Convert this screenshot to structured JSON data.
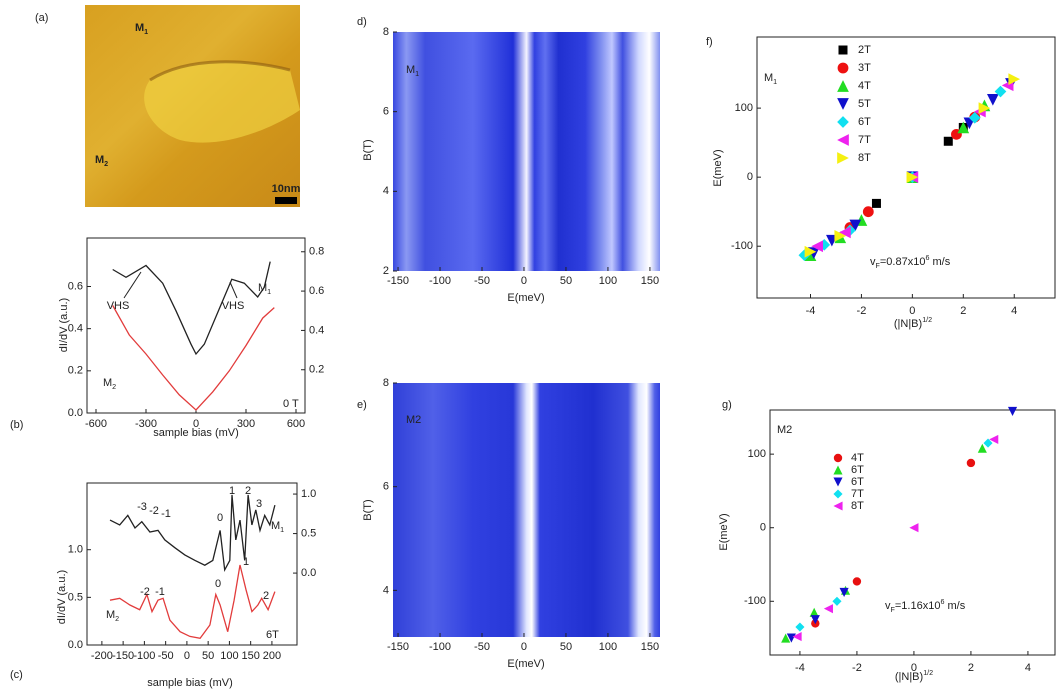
{
  "chart_data": [
    {
      "type": "image",
      "label": "(a)",
      "texts": [
        [
          {
            "text": "M"
          },
          {
            "sub": "1"
          }
        ],
        [
          {
            "text": "M"
          },
          {
            "sub": "2"
          }
        ]
      ],
      "text_colors": [
        "#111111",
        "#e8141e"
      ],
      "scale_bar": "10nm"
    },
    {
      "type": "line",
      "label": "(b)",
      "xlabel": "sample bias (mV)",
      "ylabel": "dI/dV (a.u.)",
      "xlim": [
        -654,
        654
      ],
      "xticks": [
        -600,
        -300,
        0,
        300,
        600
      ],
      "ylim": [
        0,
        0.83
      ],
      "yticks": [
        {
          "value": 0,
          "label": "0.0"
        },
        0.2,
        0.4,
        0.6
      ],
      "y2lim": [
        -0.02,
        0.87
      ],
      "y2ticks": [
        0.2,
        0.4,
        0.6,
        0.8
      ],
      "series": [
        {
          "name": [
            {
              "text": "M"
            },
            {
              "sub": "1"
            }
          ],
          "color": "#222222",
          "axis": "y2",
          "x": [
            -500,
            -420,
            -300,
            -200,
            -120,
            -30,
            0,
            50,
            140,
            215,
            290,
            370,
            410,
            445
          ],
          "values": [
            0.71,
            0.67,
            0.73,
            0.64,
            0.5,
            0.33,
            0.28,
            0.33,
            0.51,
            0.66,
            0.64,
            0.57,
            0.62,
            0.75
          ]
        },
        {
          "name": [
            {
              "text": "M"
            },
            {
              "sub": "2"
            }
          ],
          "color": "#e23c3c",
          "x": [
            -500,
            -400,
            -300,
            -200,
            -100,
            0,
            100,
            200,
            300,
            400,
            470
          ],
          "values": [
            0.51,
            0.37,
            0.28,
            0.18,
            0.086,
            0.014,
            0.1,
            0.2,
            0.32,
            0.45,
            0.5
          ]
        }
      ],
      "annotations": [
        "VHS",
        "VHS"
      ],
      "field": "0 T"
    },
    {
      "type": "line",
      "label": "(c)",
      "xlabel": "sample bias (mV)",
      "ylabel": "dI/dV (a.u.)",
      "xlim": [
        -235,
        259
      ],
      "xticks": [
        -200,
        -150,
        -100,
        -50,
        0,
        50,
        100,
        150,
        200
      ],
      "ylim": [
        0,
        1.7
      ],
      "yticks": [
        {
          "value": 0,
          "label": "0.0"
        },
        0.5,
        {
          "value": 1,
          "label": "1.0"
        }
      ],
      "y2lim": [
        -0.91,
        1.14
      ],
      "y2ticks": [
        {
          "value": 0,
          "label": "0.0"
        },
        0.5,
        {
          "value": 1,
          "label": "1.0"
        }
      ],
      "series": [
        {
          "name": [
            {
              "text": "M"
            },
            {
              "sub": "1"
            }
          ],
          "color": "#222222",
          "axis": "y2",
          "x": [
            -181,
            -158,
            -139,
            -122,
            -106,
            -87,
            -68,
            -52,
            -28,
            -5,
            19,
            42,
            61,
            78,
            89,
            101,
            106,
            115,
            125,
            136,
            144,
            153,
            162,
            172,
            183,
            195,
            207
          ],
          "values": [
            0.67,
            0.61,
            0.73,
            0.57,
            0.65,
            0.52,
            0.54,
            0.42,
            0.32,
            0.23,
            0.16,
            0.1,
            0.16,
            0.54,
            0.04,
            0.16,
            0.99,
            0.42,
            0.67,
            0.16,
            0.99,
            0.61,
            0.8,
            0.54,
            0.73,
            0.61,
            0.86
          ],
          "levels": [
            "-3",
            "-2",
            "-1",
            "0",
            "1",
            "2",
            "3"
          ]
        },
        {
          "name": [
            {
              "text": "M"
            },
            {
              "sub": "2"
            }
          ],
          "color": "#e23c3c",
          "x": [
            -181,
            -158,
            -134,
            -111,
            -94,
            -82,
            -68,
            -56,
            -40,
            -16,
            7,
            31,
            54,
            68,
            78,
            96,
            111,
            125,
            139,
            153,
            167,
            176,
            191,
            207
          ],
          "values": [
            0.47,
            0.49,
            0.42,
            0.37,
            0.53,
            0.35,
            0.47,
            0.49,
            0.26,
            0.14,
            0.09,
            0.07,
            0.21,
            0.53,
            0.42,
            0.14,
            0.47,
            0.84,
            0.58,
            0.35,
            0.42,
            0.49,
            0.37,
            0.56
          ],
          "levels": [
            "-2",
            "-1",
            "0",
            "1",
            "2"
          ]
        }
      ],
      "field": "6T"
    },
    {
      "type": "heatmap",
      "label": "d)",
      "title": [
        {
          "text": "M"
        },
        {
          "sub": "1"
        }
      ],
      "xlabel": "E(meV)",
      "ylabel": "B(T)",
      "xlim": [
        -156,
        162
      ],
      "xticks": [
        -150,
        -100,
        -50,
        0,
        50,
        100,
        150
      ],
      "ylim": [
        2,
        8
      ],
      "yticks": [
        2,
        4,
        6,
        8
      ]
    },
    {
      "type": "heatmap",
      "label": "e)",
      "title": [
        {
          "text": "M2"
        }
      ],
      "xlabel": "E(meV)",
      "ylabel": "B(T)",
      "xlim": [
        -156,
        162
      ],
      "xticks": [
        -150,
        -100,
        -50,
        0,
        50,
        100,
        150
      ],
      "ylim": [
        3.1,
        8
      ],
      "yticks": [
        4,
        6,
        8
      ]
    },
    {
      "type": "scatter",
      "label": "f)",
      "title": [
        {
          "text": "M"
        },
        {
          "sub": "1"
        }
      ],
      "xlabel": [
        {
          "text": "(|N|B)"
        },
        {
          "sup": "1/2"
        }
      ],
      "ylabel": "E(meV)",
      "xlim": [
        -6.1,
        5.6
      ],
      "xticks": [
        -4,
        -2,
        0,
        2,
        4
      ],
      "ylim": [
        -175,
        203
      ],
      "yticks": [
        -100,
        0,
        100
      ],
      "annotation": [
        {
          "text": "v"
        },
        {
          "sub": "F"
        },
        {
          "text": "=0.87x10"
        },
        {
          "sup": "6"
        },
        {
          "text": " m/s"
        }
      ],
      "series": [
        {
          "name": "2T",
          "color": "#000000",
          "marker": "square",
          "x": [
            -1.41,
            0,
            1.41,
            2.0
          ],
          "values": [
            -38,
            0,
            52,
            72
          ]
        },
        {
          "name": "3T",
          "color": "#ee1111",
          "marker": "circle",
          "x": [
            -2.45,
            -1.73,
            0,
            1.73,
            2.45
          ],
          "values": [
            -73,
            -50,
            0,
            62,
            87
          ]
        },
        {
          "name": "4T",
          "color": "#22dd22",
          "marker": "triangle-up",
          "x": [
            -4.0,
            -2.83,
            -2.0,
            0,
            2.0,
            2.83
          ],
          "values": [
            -113,
            -87,
            -62,
            0,
            72,
            104
          ]
        },
        {
          "name": "5T",
          "color": "#1010cc",
          "marker": "triangle-down",
          "x": [
            -3.87,
            -3.16,
            -2.24,
            0,
            2.24,
            3.16,
            3.87
          ],
          "values": [
            -110,
            -92,
            -70,
            0,
            78,
            112,
            135
          ]
        },
        {
          "name": "6T",
          "color": "#10e0f0",
          "marker": "diamond",
          "x": [
            -4.24,
            -3.46,
            -2.45,
            0,
            2.45,
            3.46
          ],
          "values": [
            -113,
            -98,
            -77,
            0,
            86,
            124
          ]
        },
        {
          "name": "7T",
          "color": "#ee22ee",
          "marker": "triangle-left",
          "x": [
            -3.74,
            -2.65,
            0,
            2.65,
            3.74
          ],
          "values": [
            -100,
            -80,
            0,
            95,
            133
          ]
        },
        {
          "name": "8T",
          "color": "#f5f010",
          "marker": "triangle-right",
          "x": [
            -4.0,
            -2.83,
            0,
            2.83,
            4.0
          ],
          "values": [
            -108,
            -85,
            0,
            100,
            142
          ]
        }
      ]
    },
    {
      "type": "scatter",
      "label": "g)",
      "title": [
        {
          "text": "M2"
        }
      ],
      "xlabel": [
        {
          "text": "(|N|B)"
        },
        {
          "sup": "1/2"
        }
      ],
      "ylabel": "E(meV)",
      "xlim": [
        -5.05,
        4.95
      ],
      "xticks": [
        -4,
        -2,
        0,
        2,
        4
      ],
      "ylim": [
        -173,
        160
      ],
      "yticks": [
        -100,
        0,
        100
      ],
      "annotation": [
        {
          "text": "v"
        },
        {
          "sub": "F"
        },
        {
          "text": "=1.16x10"
        },
        {
          "sup": "6"
        },
        {
          "text": " m/s"
        }
      ],
      "series": [
        {
          "name": "4T",
          "color": "#e81010",
          "marker": "circle",
          "x": [
            -3.46,
            -2.0,
            2.0
          ],
          "values": [
            -130,
            -73,
            88
          ]
        },
        {
          "name": "6T",
          "color": "#22dd22",
          "marker": "triangle-up",
          "x": [
            -4.5,
            -3.5,
            -2.4,
            2.4
          ],
          "values": [
            -150,
            -115,
            -85,
            108
          ]
        },
        {
          "name": "6T",
          "color": "#1010cc",
          "marker": "triangle-down",
          "x": [
            -4.3,
            -3.46,
            -2.45,
            3.46
          ],
          "values": [
            -150,
            -125,
            -88,
            158
          ]
        },
        {
          "name": "7T",
          "color": "#10e0f0",
          "marker": "diamond",
          "x": [
            -4.0,
            -2.7,
            2.6
          ],
          "values": [
            -135,
            -100,
            115
          ]
        },
        {
          "name": "8T",
          "color": "#ee22ee",
          "marker": "triangle-left",
          "x": [
            -4.1,
            -3.0,
            0,
            2.8
          ],
          "values": [
            -148,
            -110,
            0,
            120
          ]
        }
      ]
    }
  ]
}
